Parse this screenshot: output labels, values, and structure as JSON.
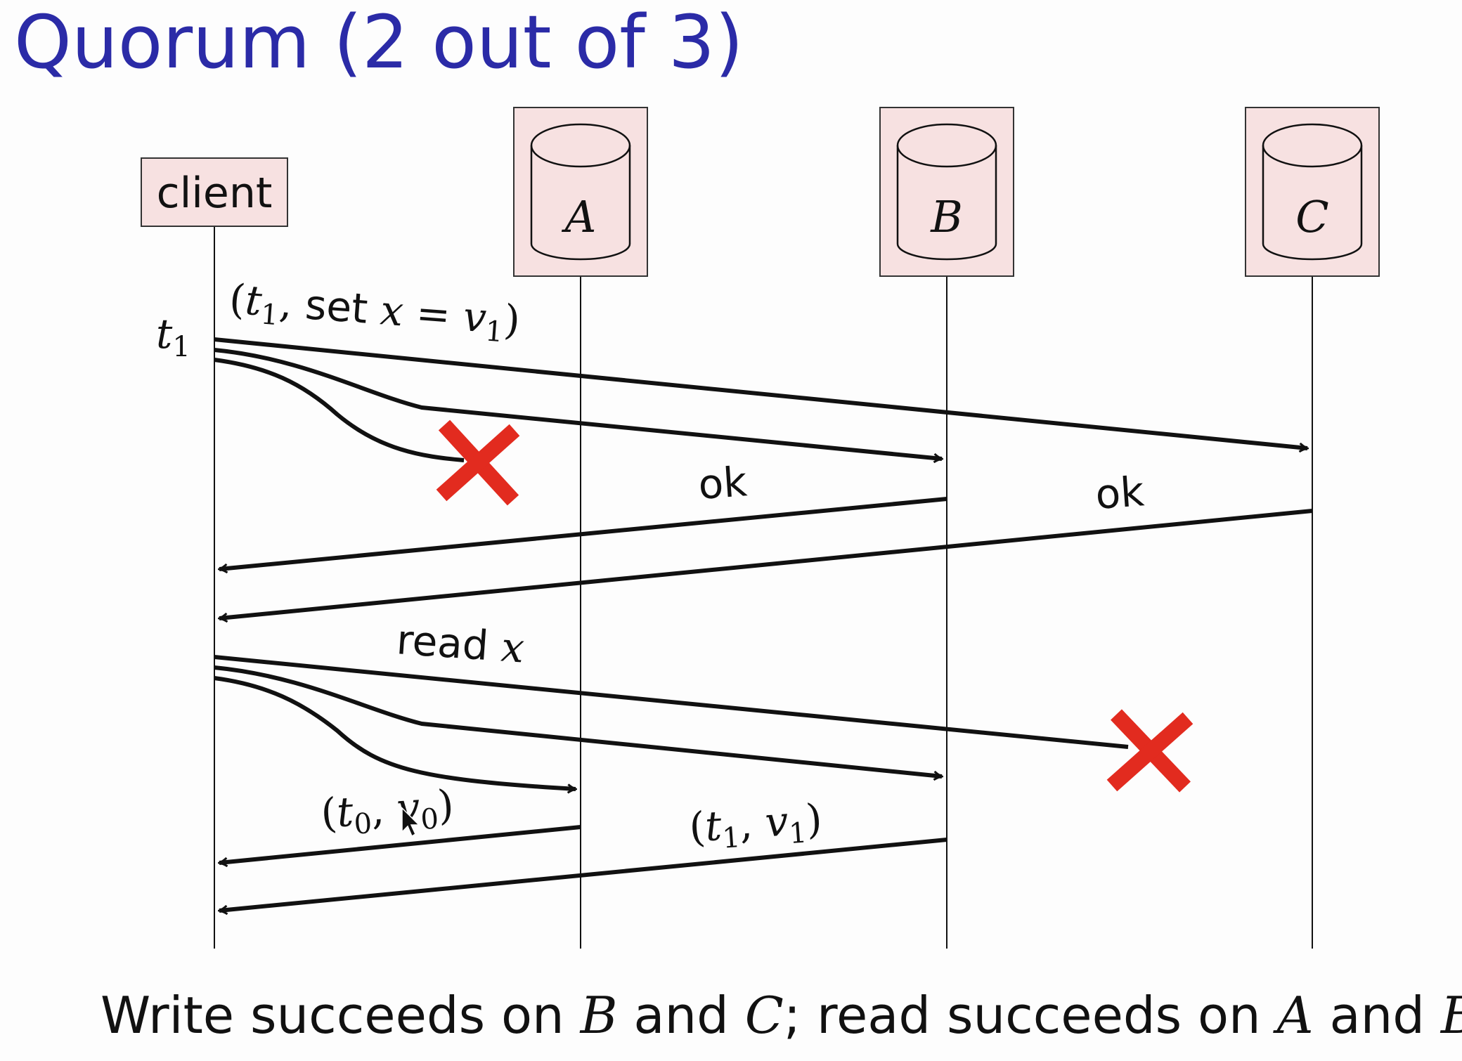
{
  "title": "Quorum (2 out of 3)",
  "client_label": "client",
  "replicas": [
    "A",
    "B",
    "C"
  ],
  "time_label": {
    "t": "t",
    "sub": "1"
  },
  "write": {
    "label": {
      "open": "(",
      "t": "t",
      "t_sub": "1",
      "comma": ", ",
      "word": "set ",
      "x": "x",
      "eq": " = ",
      "v": "v",
      "v_sub": "1",
      "close": ")"
    },
    "ok_b": "ok",
    "ok_c": "ok"
  },
  "read": {
    "label": {
      "word": "read ",
      "x": "x"
    },
    "reply_a": {
      "open": "(",
      "t": "t",
      "t_sub": "0",
      "comma": ", ",
      "v": "v",
      "v_sub": "0",
      "close": ")"
    },
    "reply_b": {
      "open": "(",
      "t": "t",
      "t_sub": "1",
      "comma": ", ",
      "v": "v",
      "v_sub": "1",
      "close": ")"
    }
  },
  "caption": {
    "p1": "Write succeeds on ",
    "m1": "B",
    "p2": " and ",
    "m2": "C",
    "p3": "; read succeeds on ",
    "m3": "A",
    "p4": " and ",
    "m4": "B"
  },
  "colors": {
    "title": "#2b2ba7",
    "node_fill": "#f7e1e1",
    "cross": "#e22b1f",
    "line": "#111111"
  }
}
